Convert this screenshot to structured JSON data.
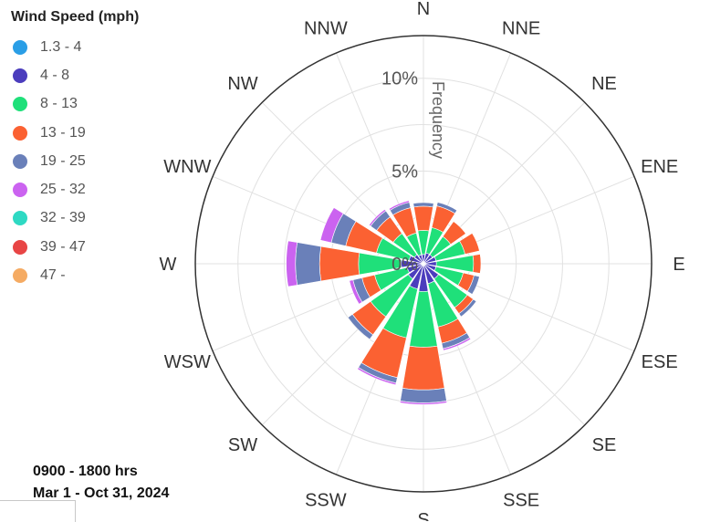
{
  "legend": {
    "title": "Wind Speed (mph)",
    "items": [
      {
        "label": "1.3 - 4",
        "color": "#2a9ee6"
      },
      {
        "label": "4 - 8",
        "color": "#4b3dbd"
      },
      {
        "label": "8 - 13",
        "color": "#1fe07a"
      },
      {
        "label": "13 - 19",
        "color": "#fb6132"
      },
      {
        "label": "19 - 25",
        "color": "#6a80b9"
      },
      {
        "label": "25 - 32",
        "color": "#cb63f0"
      },
      {
        "label": "32 - 39",
        "color": "#2ed9c3"
      },
      {
        "label": "39 - 47",
        "color": "#e84545"
      },
      {
        "label": "47 -",
        "color": "#f5ab63"
      }
    ]
  },
  "footnote": {
    "hours": "0900 - 1800 hrs",
    "dates": "Mar 1 - Oct 31, 2024"
  },
  "chart_data": {
    "type": "windrose",
    "directions": [
      "N",
      "NNE",
      "NE",
      "ENE",
      "E",
      "ESE",
      "SE",
      "SSE",
      "S",
      "SSW",
      "SW",
      "WSW",
      "W",
      "WNW",
      "NW",
      "NNW"
    ],
    "radial_axis": {
      "title": "Frequency",
      "tick_labels": [
        "0%",
        "5%",
        "10%"
      ],
      "ticks": [
        0,
        5,
        10
      ],
      "max": 12.3
    },
    "series": [
      {
        "name": "1.3 - 4",
        "color": "#2a9ee6",
        "values": [
          0.1,
          0.1,
          0.1,
          0.1,
          0.1,
          0.1,
          0.1,
          0.1,
          0.1,
          0.1,
          0.1,
          0.1,
          0.1,
          0.1,
          0.1,
          0.1
        ]
      },
      {
        "name": "4 - 8",
        "color": "#4b3dbd",
        "values": [
          0.4,
          0.5,
          0.5,
          0.6,
          0.6,
          0.6,
          0.9,
          1.0,
          1.4,
          1.3,
          0.9,
          0.8,
          1.1,
          0.7,
          0.5,
          0.4
        ]
      },
      {
        "name": "8 - 13",
        "color": "#1fe07a",
        "values": [
          1.3,
          1.4,
          1.2,
          1.6,
          2.0,
          1.5,
          1.9,
          2.4,
          3.0,
          2.7,
          2.5,
          1.8,
          2.3,
          1.8,
          1.4,
          1.2
        ]
      },
      {
        "name": "13 - 19",
        "color": "#fb6132",
        "values": [
          1.3,
          1.2,
          1.0,
          0.8,
          0.4,
          0.6,
          0.4,
          0.9,
          2.3,
          2.2,
          1.2,
          0.7,
          2.1,
          1.7,
          1.1,
          1.4
        ]
      },
      {
        "name": "19 - 25",
        "color": "#6a80b9",
        "values": [
          0.2,
          0.2,
          0.0,
          0.0,
          0.0,
          0.3,
          0.2,
          0.3,
          0.7,
          0.3,
          0.3,
          0.5,
          1.3,
          0.8,
          0.4,
          0.3
        ]
      },
      {
        "name": "25 - 32",
        "color": "#cb63f0",
        "values": [
          0.0,
          0.0,
          0.0,
          0.0,
          0.0,
          0.0,
          0.0,
          0.1,
          0.1,
          0.1,
          0.0,
          0.2,
          0.5,
          0.6,
          0.1,
          0.1
        ]
      },
      {
        "name": "32 - 39",
        "color": "#2ed9c3",
        "values": [
          0,
          0,
          0,
          0,
          0,
          0,
          0,
          0,
          0,
          0,
          0,
          0,
          0,
          0,
          0,
          0
        ]
      },
      {
        "name": "39 - 47",
        "color": "#e84545",
        "values": [
          0,
          0,
          0,
          0,
          0,
          0,
          0,
          0,
          0,
          0,
          0,
          0,
          0,
          0,
          0,
          0
        ]
      },
      {
        "name": "47 -",
        "color": "#f5ab63",
        "values": [
          0,
          0,
          0,
          0,
          0,
          0,
          0,
          0,
          0,
          0,
          0,
          0,
          0,
          0,
          0,
          0
        ]
      }
    ]
  }
}
